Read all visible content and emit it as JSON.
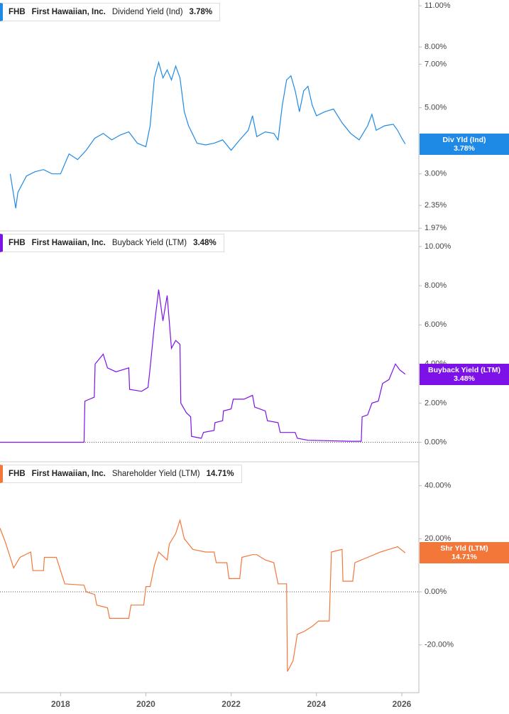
{
  "chart_data": [
    {
      "type": "line",
      "ticker": "FHB",
      "company": "First Hawaiian, Inc.",
      "log_scale": true,
      "zero_line": false,
      "xlim": [
        2016.58,
        2026.4
      ],
      "ylim": [
        1.93,
        11.5
      ],
      "yticks": [
        {
          "value": 11,
          "label": "11.00%"
        },
        {
          "value": 8,
          "label": "8.00%"
        },
        {
          "value": 7,
          "label": "7.00%"
        },
        {
          "value": 5,
          "label": "5.00%"
        },
        {
          "value": 3,
          "label": "3.00%"
        },
        {
          "value": 2.35,
          "label": "2.35%"
        },
        {
          "value": 1.97,
          "label": "1.97%"
        }
      ],
      "x": [
        2016.82,
        2016.95,
        2017.0,
        2017.2,
        2017.4,
        2017.6,
        2017.8,
        2018.0,
        2018.2,
        2018.4,
        2018.6,
        2018.8,
        2019.0,
        2019.2,
        2019.4,
        2019.6,
        2019.8,
        2020.0,
        2020.1,
        2020.2,
        2020.3,
        2020.4,
        2020.5,
        2020.6,
        2020.7,
        2020.8,
        2020.9,
        2021.0,
        2021.2,
        2021.4,
        2021.6,
        2021.8,
        2022.0,
        2022.2,
        2022.4,
        2022.5,
        2022.6,
        2022.8,
        2023.0,
        2023.1,
        2023.2,
        2023.3,
        2023.4,
        2023.5,
        2023.6,
        2023.7,
        2023.8,
        2023.9,
        2024.0,
        2024.2,
        2024.4,
        2024.6,
        2024.8,
        2025.0,
        2025.2,
        2025.3,
        2025.4,
        2025.6,
        2025.8,
        2025.9,
        2026.0,
        2026.08
      ],
      "series": [
        {
          "name": "Dividend Yield (Ind)",
          "short_name": "Div Yld (Ind)",
          "color": "#1f8ae6",
          "value_label": "3.78%",
          "values": [
            3.0,
            2.3,
            2.6,
            2.95,
            3.05,
            3.1,
            3.0,
            3.0,
            3.5,
            3.35,
            3.6,
            3.95,
            4.1,
            3.9,
            4.05,
            4.15,
            3.8,
            3.7,
            4.35,
            6.3,
            7.1,
            6.3,
            6.7,
            6.2,
            6.9,
            6.3,
            4.85,
            4.35,
            3.8,
            3.75,
            3.8,
            3.9,
            3.6,
            3.9,
            4.2,
            4.7,
            4.0,
            4.15,
            4.1,
            3.9,
            5.1,
            6.2,
            6.4,
            5.7,
            4.85,
            5.7,
            5.9,
            5.1,
            4.7,
            4.85,
            4.95,
            4.45,
            4.1,
            3.9,
            4.35,
            4.75,
            4.2,
            4.35,
            4.4,
            4.2,
            3.95,
            3.78
          ]
        }
      ]
    },
    {
      "type": "line",
      "ticker": "FHB",
      "company": "First Hawaiian, Inc.",
      "log_scale": false,
      "zero_line": true,
      "xlim": [
        2016.58,
        2026.4
      ],
      "ylim": [
        -1.0,
        10.8
      ],
      "yticks": [
        {
          "value": 10,
          "label": "10.00%"
        },
        {
          "value": 8,
          "label": "8.00%"
        },
        {
          "value": 6,
          "label": "6.00%"
        },
        {
          "value": 4,
          "label": "4.00%"
        },
        {
          "value": 2,
          "label": "2.00%"
        },
        {
          "value": 0,
          "label": "0.00%"
        }
      ],
      "x": [
        2016.58,
        2018.55,
        2018.57,
        2018.79,
        2018.81,
        2019.0,
        2019.1,
        2019.3,
        2019.6,
        2019.62,
        2019.9,
        2020.05,
        2020.1,
        2020.2,
        2020.3,
        2020.4,
        2020.5,
        2020.6,
        2020.7,
        2020.8,
        2020.82,
        2020.95,
        2021.05,
        2021.07,
        2021.3,
        2021.35,
        2021.6,
        2021.62,
        2021.8,
        2021.82,
        2022.0,
        2022.05,
        2022.3,
        2022.5,
        2022.55,
        2022.8,
        2022.85,
        2023.1,
        2023.15,
        2023.5,
        2023.55,
        2023.8,
        2024.8,
        2025.05,
        2025.07,
        2025.2,
        2025.3,
        2025.45,
        2025.55,
        2025.7,
        2025.85,
        2025.95,
        2026.08
      ],
      "series": [
        {
          "name": "Buyback Yield (LTM)",
          "short_name": "Buyback Yield (LTM)",
          "color": "#7d12e8",
          "value_label": "3.48%",
          "values": [
            0,
            0,
            2.1,
            2.3,
            4.0,
            4.5,
            3.8,
            3.6,
            3.8,
            2.7,
            2.6,
            2.8,
            3.8,
            6.0,
            7.8,
            6.2,
            7.5,
            4.8,
            5.2,
            5.0,
            2.0,
            1.5,
            1.3,
            0.3,
            0.2,
            0.5,
            0.6,
            1.0,
            1.1,
            1.6,
            1.7,
            2.2,
            2.2,
            2.4,
            1.8,
            1.6,
            1.1,
            1.0,
            0.5,
            0.5,
            0.2,
            0.1,
            0.05,
            0.05,
            1.3,
            1.4,
            2.0,
            2.1,
            3.0,
            3.2,
            4.0,
            3.7,
            3.48
          ]
        }
      ]
    },
    {
      "type": "line",
      "ticker": "FHB",
      "company": "First Hawaiian, Inc.",
      "log_scale": false,
      "zero_line": true,
      "xlim": [
        2016.58,
        2026.4
      ],
      "ylim": [
        -38,
        49
      ],
      "yticks": [
        {
          "value": 40,
          "label": "40.00%"
        },
        {
          "value": 20,
          "label": "20.00%"
        },
        {
          "value": 0,
          "label": "0.00%"
        },
        {
          "value": -20,
          "label": "-20.00%"
        }
      ],
      "xticks": [
        2018,
        2020,
        2022,
        2024,
        2026
      ],
      "x": [
        2016.58,
        2016.7,
        2016.9,
        2017.05,
        2017.3,
        2017.35,
        2017.6,
        2017.62,
        2017.9,
        2018.1,
        2018.55,
        2018.6,
        2018.8,
        2018.85,
        2019.1,
        2019.15,
        2019.6,
        2019.65,
        2019.95,
        2020.0,
        2020.1,
        2020.2,
        2020.3,
        2020.5,
        2020.55,
        2020.7,
        2020.8,
        2020.9,
        2021.1,
        2021.4,
        2021.6,
        2021.65,
        2021.9,
        2021.95,
        2022.2,
        2022.25,
        2022.5,
        2022.6,
        2022.8,
        2023.0,
        2023.1,
        2023.3,
        2023.32,
        2023.45,
        2023.55,
        2023.7,
        2023.9,
        2024.05,
        2024.3,
        2024.35,
        2024.6,
        2024.62,
        2024.85,
        2024.9,
        2025.2,
        2025.5,
        2025.7,
        2025.9,
        2026.08
      ],
      "series": [
        {
          "name": "Shareholder Yield (LTM)",
          "short_name": "Shr Yld (LTM)",
          "color": "#f4773a",
          "value_label": "14.71%",
          "values": [
            24,
            19,
            9,
            13,
            15,
            8,
            8,
            13,
            13,
            3,
            2.5,
            0,
            -1,
            -5,
            -6,
            -10,
            -10,
            -5,
            -5,
            2,
            2,
            10,
            15,
            12,
            18,
            22,
            27,
            20,
            16,
            15,
            15,
            11,
            11,
            5,
            5,
            13,
            14,
            14,
            12,
            11,
            3,
            3,
            -30,
            -26,
            -16,
            -15,
            -13,
            -11,
            -11,
            15,
            16,
            4,
            4,
            11,
            13,
            15,
            16,
            17,
            14.71
          ]
        }
      ]
    }
  ]
}
